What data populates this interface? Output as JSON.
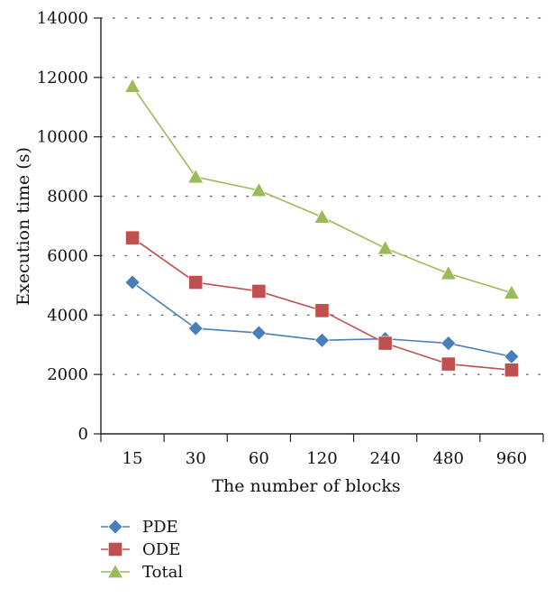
{
  "chart_data": {
    "type": "line",
    "title": "",
    "xlabel": "The number of blocks",
    "ylabel": "Execution time (s)",
    "categories": [
      "15",
      "30",
      "60",
      "120",
      "240",
      "480",
      "960"
    ],
    "ylim": [
      0,
      14000
    ],
    "yticks": [
      "0",
      "2000",
      "4000",
      "6000",
      "8000",
      "10000",
      "12000",
      "14000"
    ],
    "grid": "horizontal dotted",
    "legend_position": "bottom-left",
    "series": [
      {
        "name": "PDE",
        "color": "#4a7ebb",
        "marker": "diamond",
        "values": [
          5100,
          3550,
          3400,
          3150,
          3200,
          3050,
          2600
        ]
      },
      {
        "name": "ODE",
        "color": "#c0504d",
        "marker": "square",
        "values": [
          6600,
          5100,
          4800,
          4150,
          3050,
          2350,
          2150
        ]
      },
      {
        "name": "Total",
        "color": "#9bbb59",
        "marker": "triangle",
        "values": [
          11700,
          8650,
          8200,
          7300,
          6250,
          5400,
          4750
        ]
      }
    ]
  }
}
